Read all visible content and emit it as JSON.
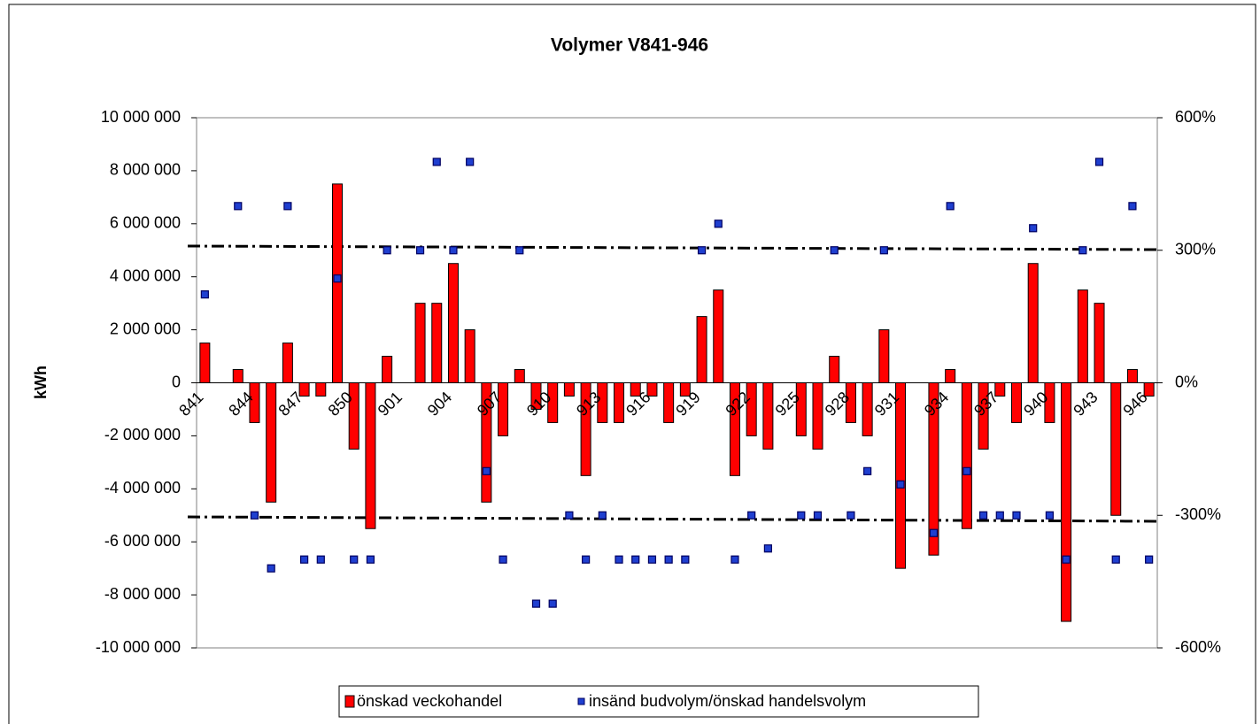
{
  "chart_data": {
    "type": "bar",
    "title": "Volymer V841-946",
    "y_label": "kWh",
    "categories": [
      "841",
      null,
      null,
      "844",
      null,
      null,
      "847",
      null,
      null,
      "850",
      null,
      null,
      "901",
      null,
      null,
      "904",
      null,
      null,
      "907",
      null,
      null,
      "910",
      null,
      null,
      "913",
      null,
      null,
      "916",
      null,
      null,
      "919",
      null,
      null,
      "922",
      null,
      null,
      "925",
      null,
      null,
      "928",
      null,
      null,
      "931",
      null,
      null,
      "934",
      null,
      null,
      "937",
      null,
      null,
      "940",
      null,
      null,
      "943",
      null,
      null,
      "946"
    ],
    "series": [
      {
        "name": "önskad veckohandel",
        "type": "bar",
        "color": "#ff0000",
        "axis": "y",
        "values": [
          1500000,
          null,
          500000,
          -1500000,
          -4500000,
          1500000,
          -500000,
          -500000,
          7500000,
          -2500000,
          -5500000,
          1000000,
          null,
          3000000,
          3000000,
          4500000,
          2000000,
          -4500000,
          -2000000,
          500000,
          -1000000,
          -1500000,
          -500000,
          -3500000,
          -1500000,
          -1500000,
          -500000,
          -500000,
          -1500000,
          -500000,
          2500000,
          3500000,
          -3500000,
          -2000000,
          -2500000,
          null,
          -2000000,
          -2500000,
          1000000,
          -1500000,
          -2000000,
          2000000,
          -7000000,
          null,
          -6500000,
          500000,
          -5500000,
          -2500000,
          -500000,
          -1500000,
          4500000,
          -1500000,
          -9000000,
          3500000,
          3000000,
          -5000000,
          500000,
          -500000
        ]
      },
      {
        "name": "insänd budvolym/önskad handelsvolym",
        "type": "scatter",
        "color": "#1f3fd0",
        "axis": "y2",
        "values": [
          200,
          null,
          400,
          -300,
          -420,
          400,
          -400,
          -400,
          236,
          -400,
          -400,
          300,
          null,
          300,
          500,
          300,
          500,
          -200,
          -400,
          300,
          -500,
          -500,
          -300,
          -400,
          -300,
          -400,
          -400,
          -400,
          -400,
          -400,
          300,
          360,
          -400,
          -300,
          -375,
          null,
          -300,
          -300,
          300,
          -300,
          -200,
          300,
          -230,
          null,
          -340,
          400,
          -200,
          -300,
          -300,
          -300,
          350,
          -300,
          -400,
          300,
          500,
          -400,
          400,
          -400
        ]
      }
    ],
    "ylim": [
      -10000000,
      10000000
    ],
    "yticks": [
      {
        "value": 10000000,
        "label": "10 000 000"
      },
      {
        "value": 8000000,
        "label": "8 000 000"
      },
      {
        "value": 6000000,
        "label": "6 000 000"
      },
      {
        "value": 4000000,
        "label": "4 000 000"
      },
      {
        "value": 2000000,
        "label": "2 000 000"
      },
      0,
      {
        "value": -2000000,
        "label": "-2 000 000"
      },
      {
        "value": -4000000,
        "label": "-4 000 000"
      },
      {
        "value": -6000000,
        "label": "-6 000 000"
      },
      {
        "value": -8000000,
        "label": "-8 000 000"
      },
      {
        "value": -10000000,
        "label": "-10 000 000"
      }
    ],
    "y2lim": [
      -600,
      600
    ],
    "y2ticks": [
      {
        "value": 600,
        "label": "600%"
      },
      {
        "value": 300,
        "label": "300%"
      },
      {
        "value": 0,
        "label": "0%"
      },
      {
        "value": -300,
        "label": "-300%"
      },
      {
        "value": -600,
        "label": "-600%"
      }
    ],
    "legend": "bottom"
  }
}
